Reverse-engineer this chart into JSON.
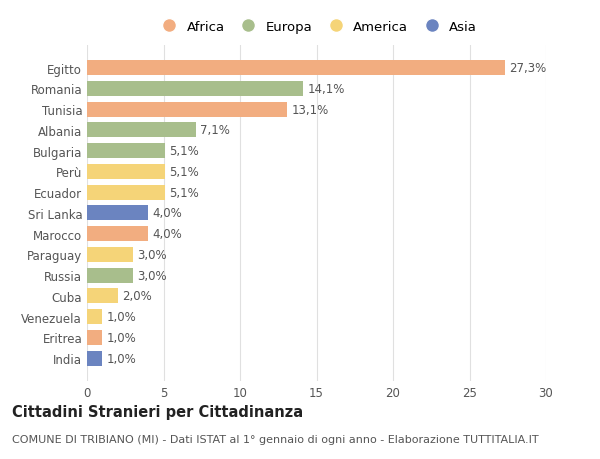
{
  "countries": [
    "Egitto",
    "Romania",
    "Tunisia",
    "Albania",
    "Bulgaria",
    "Perù",
    "Ecuador",
    "Sri Lanka",
    "Marocco",
    "Paraguay",
    "Russia",
    "Cuba",
    "Venezuela",
    "Eritrea",
    "India"
  ],
  "values": [
    27.3,
    14.1,
    13.1,
    7.1,
    5.1,
    5.1,
    5.1,
    4.0,
    4.0,
    3.0,
    3.0,
    2.0,
    1.0,
    1.0,
    1.0
  ],
  "labels": [
    "27,3%",
    "14,1%",
    "13,1%",
    "7,1%",
    "5,1%",
    "5,1%",
    "5,1%",
    "4,0%",
    "4,0%",
    "3,0%",
    "3,0%",
    "2,0%",
    "1,0%",
    "1,0%",
    "1,0%"
  ],
  "continents": [
    "Africa",
    "Europa",
    "Africa",
    "Europa",
    "Europa",
    "America",
    "America",
    "Asia",
    "Africa",
    "America",
    "Europa",
    "America",
    "America",
    "Africa",
    "Asia"
  ],
  "colors": {
    "Africa": "#F2AD80",
    "Europa": "#A8BE8C",
    "America": "#F5D478",
    "Asia": "#6B84C0"
  },
  "legend_order": [
    "Africa",
    "Europa",
    "America",
    "Asia"
  ],
  "title": "Cittadini Stranieri per Cittadinanza",
  "subtitle": "COMUNE DI TRIBIANO (MI) - Dati ISTAT al 1° gennaio di ogni anno - Elaborazione TUTTITALIA.IT",
  "xlim": [
    0,
    30
  ],
  "xticks": [
    0,
    5,
    10,
    15,
    20,
    25,
    30
  ],
  "background_color": "#ffffff",
  "bar_height": 0.72,
  "grid_color": "#e0e0e0",
  "text_color": "#555555",
  "title_fontsize": 10.5,
  "subtitle_fontsize": 8,
  "tick_fontsize": 8.5,
  "label_fontsize": 8.5,
  "legend_fontsize": 9.5
}
